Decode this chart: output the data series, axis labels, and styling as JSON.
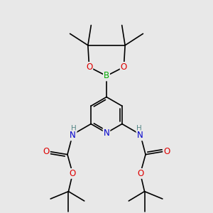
{
  "bg_color": "#e8e8e8",
  "atom_colors": {
    "C": "#000000",
    "N": "#0000cc",
    "O": "#dd0000",
    "B": "#00aa00",
    "H": "#558888"
  },
  "bond_color": "#000000",
  "bond_width": 1.2,
  "figsize": [
    3.0,
    3.0
  ],
  "dpi": 100
}
